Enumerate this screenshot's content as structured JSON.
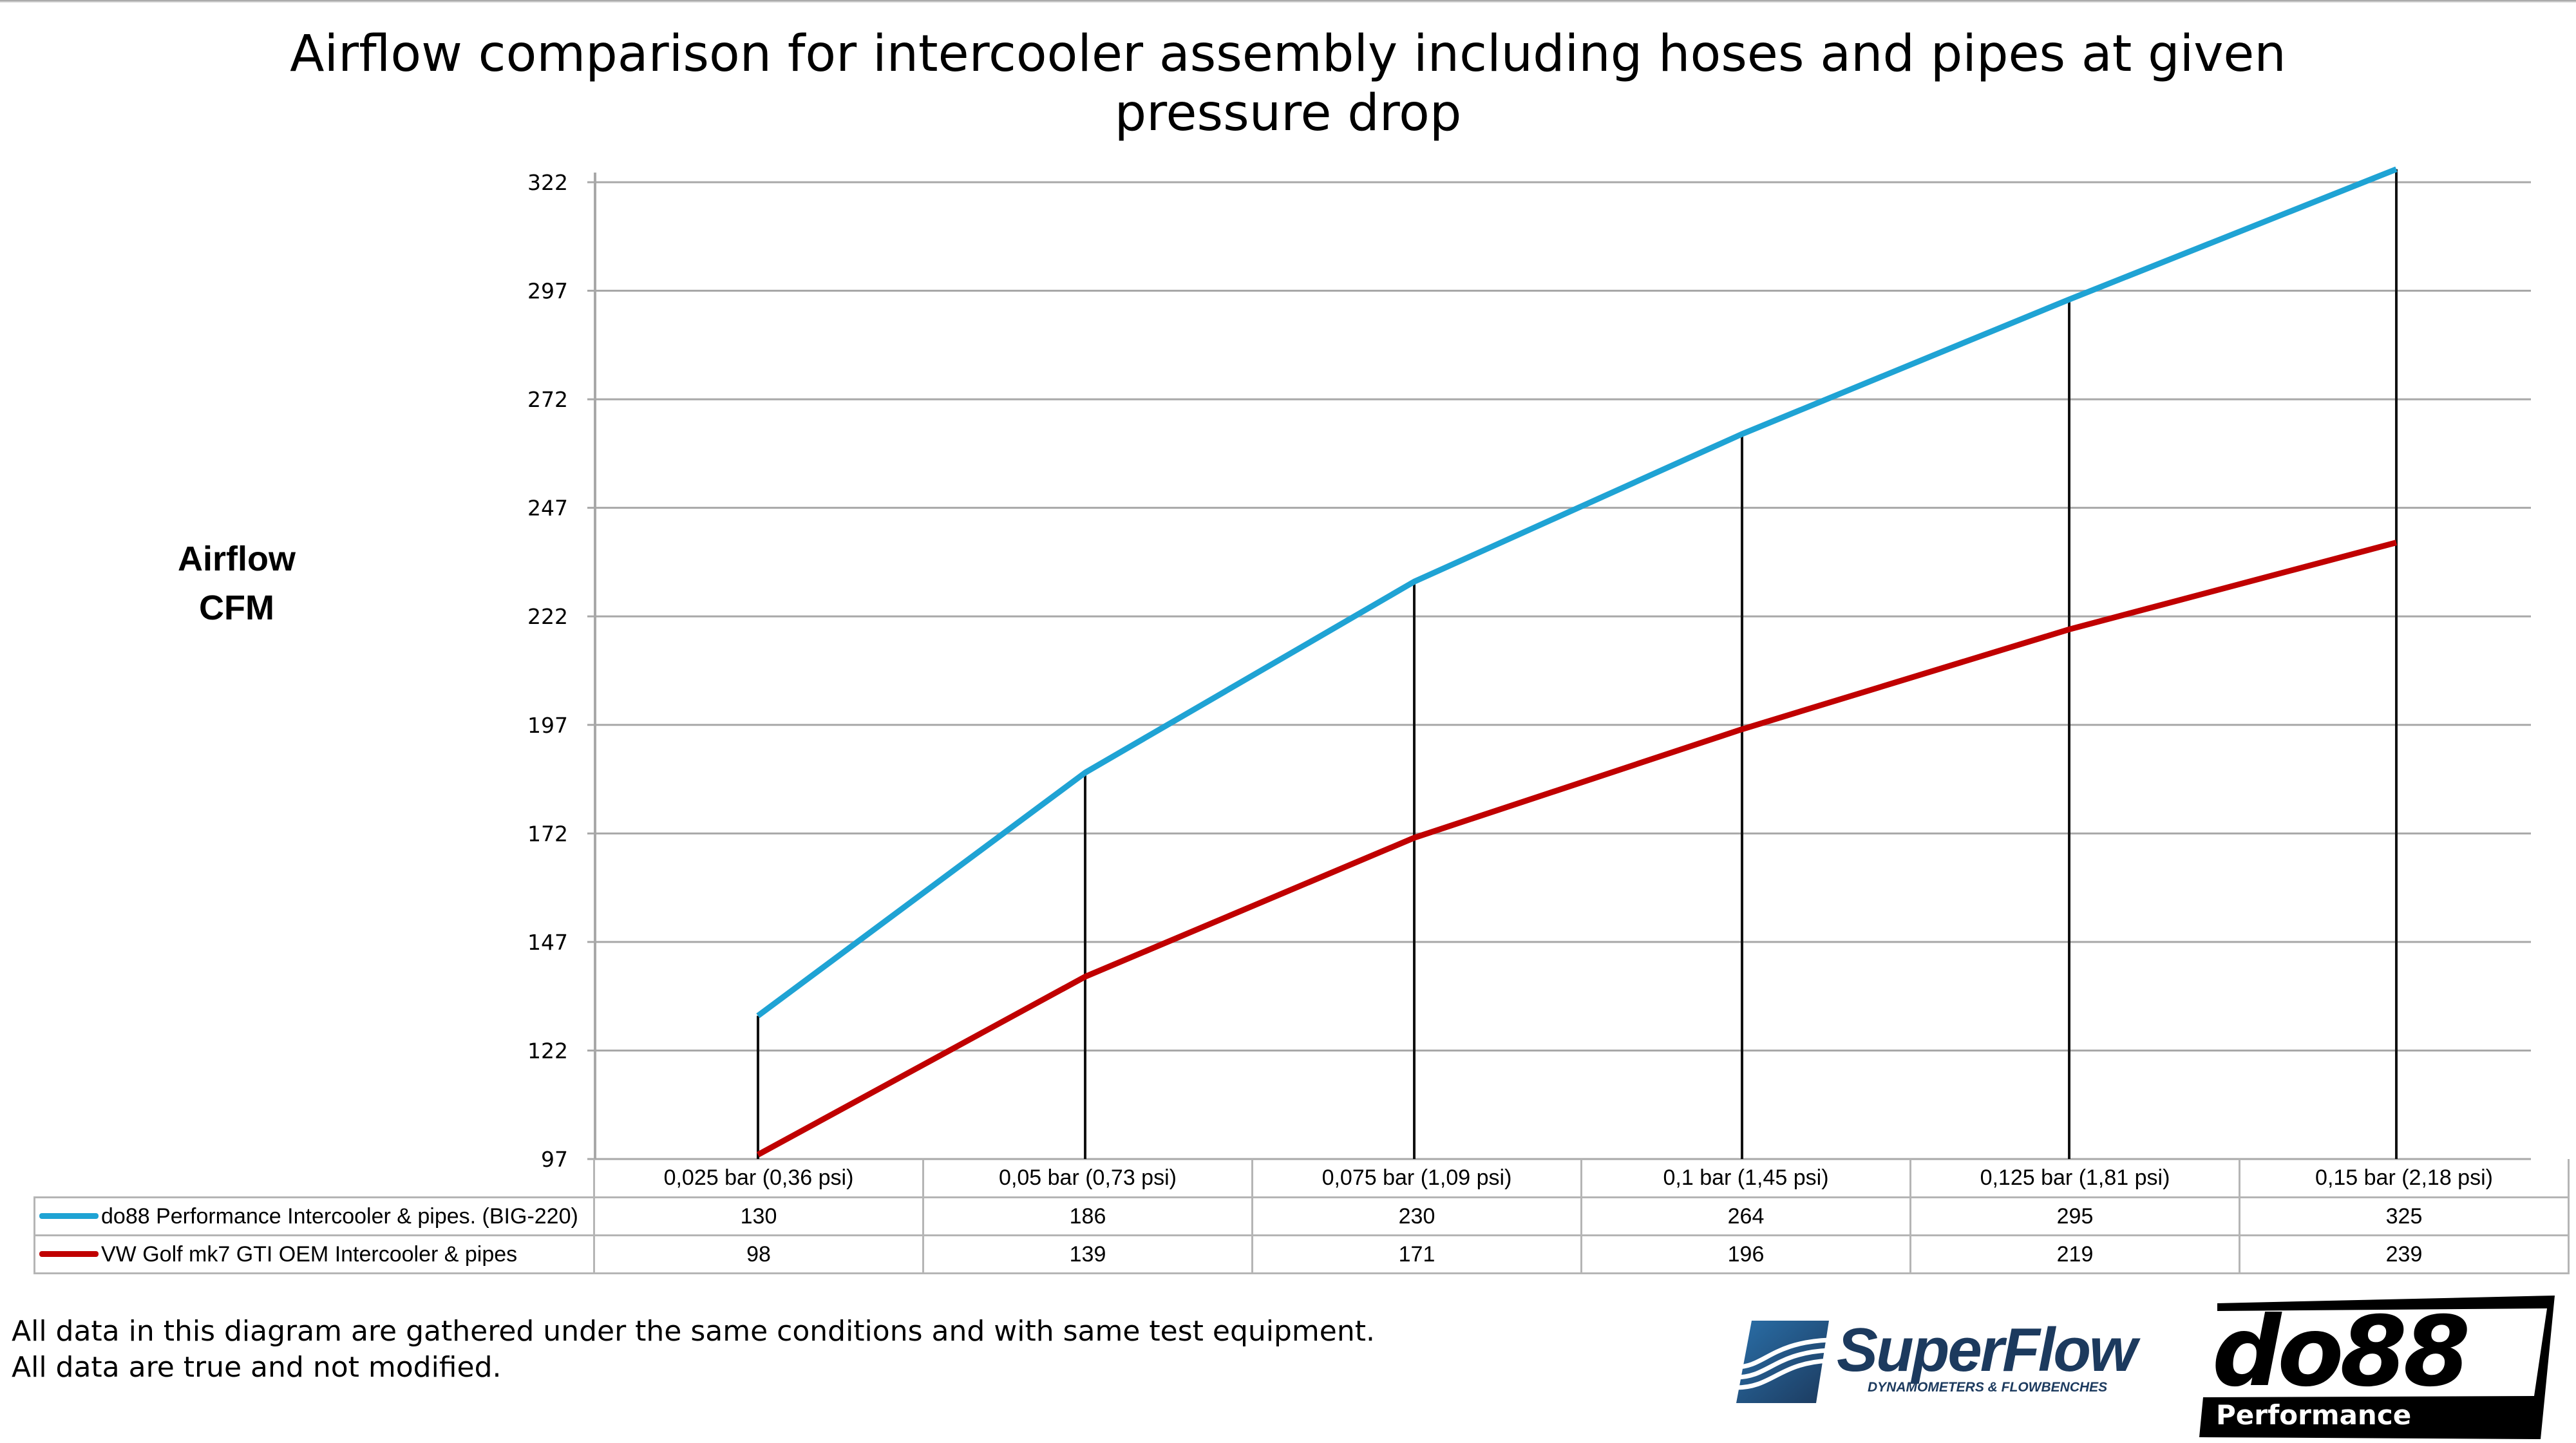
{
  "title": {
    "line1": "Airflow comparison for intercooler assembly including hoses and pipes at given",
    "line2": "pressure drop"
  },
  "y_axis": {
    "label_line1": "Airflow",
    "label_line2": "CFM",
    "ticks": [
      "322",
      "297",
      "272",
      "247",
      "222",
      "197",
      "172",
      "147",
      "122",
      "97"
    ]
  },
  "table": {
    "columns": [
      "0,025 bar (0,36 psi)",
      "0,05 bar (0,73 psi)",
      "0,075 bar (1,09 psi)",
      "0,1 bar (1,45 psi)",
      "0,125 bar (1,81 psi)",
      "0,15 bar (2,18 psi)"
    ],
    "rows": [
      {
        "label": "do88 Performance Intercooler & pipes. (BIG-220)",
        "color": "#1fa3d4",
        "values": [
          "130",
          "186",
          "230",
          "264",
          "295",
          "325"
        ]
      },
      {
        "label": "VW Golf mk7 GTI OEM Intercooler & pipes",
        "color": "#c00000",
        "values": [
          "98",
          "139",
          "171",
          "196",
          "219",
          "239"
        ]
      }
    ]
  },
  "disclaimer": {
    "line1": "All data in this diagram are gathered under the same conditions and with same test equipment.",
    "line2": "All data are true and not modified."
  },
  "logos": {
    "superflow": {
      "name": "SuperFlow",
      "tagline": "DYNAMOMETERS & FLOWBENCHES",
      "color": "#1c3a5e",
      "accent": "#2a6fa8"
    },
    "do88": {
      "name": "do88",
      "tagline": "Performance"
    }
  },
  "chart_data": {
    "type": "line",
    "title": "Airflow comparison for intercooler assembly including hoses and pipes at given pressure drop",
    "xlabel": "",
    "ylabel": "Airflow CFM",
    "categories": [
      "0,025 bar (0,36 psi)",
      "0,05 bar (0,73 psi)",
      "0,075 bar (1,09 psi)",
      "0,1 bar (1,45 psi)",
      "0,125 bar (1,81 psi)",
      "0,15 bar (2,18 psi)"
    ],
    "series": [
      {
        "name": "do88 Performance Intercooler & pipes. (BIG-220)",
        "color": "#1fa3d4",
        "values": [
          130,
          186,
          230,
          264,
          295,
          325
        ]
      },
      {
        "name": "VW Golf mk7 GTI OEM Intercooler & pipes",
        "color": "#c00000",
        "values": [
          98,
          139,
          171,
          196,
          219,
          239
        ]
      }
    ],
    "yticks": [
      97,
      122,
      147,
      172,
      197,
      222,
      247,
      272,
      297,
      322
    ],
    "ylim": [
      97,
      325
    ],
    "grid": true,
    "drop_lines": true,
    "legend_position": "data-table-below"
  }
}
